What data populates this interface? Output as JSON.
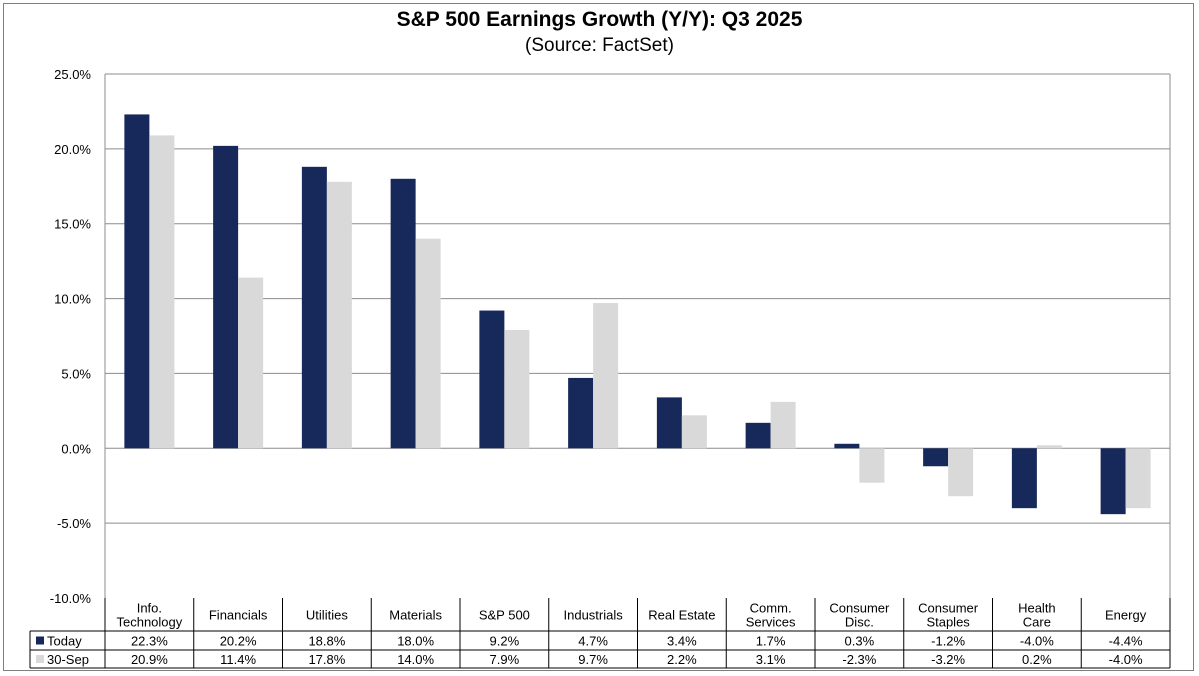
{
  "chart_data": {
    "type": "bar",
    "title": "S&P 500 Earnings Growth (Y/Y): Q3 2025",
    "subtitle": "(Source: FactSet)",
    "xlabel": "",
    "ylabel": "",
    "ylim": [
      -10,
      25
    ],
    "ytick_step": 5,
    "ytick_labels": [
      "25.0%",
      "20.0%",
      "15.0%",
      "10.0%",
      "5.0%",
      "0.0%",
      "-5.0%",
      "-10.0%"
    ],
    "grid": true,
    "legend": "in data table, left",
    "categories": [
      [
        "Info.",
        "Technology"
      ],
      [
        "Financials"
      ],
      [
        "Utilities"
      ],
      [
        "Materials"
      ],
      [
        "S&P 500"
      ],
      [
        "Industrials"
      ],
      [
        "Real Estate"
      ],
      [
        "Comm.",
        "Services"
      ],
      [
        "Consumer",
        "Disc."
      ],
      [
        "Consumer",
        "Staples"
      ],
      [
        "Health",
        "Care"
      ],
      [
        "Energy"
      ]
    ],
    "series": [
      {
        "name": "Today",
        "color": "#17285a",
        "values": [
          22.3,
          20.2,
          18.8,
          18.0,
          9.2,
          4.7,
          3.4,
          1.7,
          0.3,
          -1.2,
          -4.0,
          -4.4
        ],
        "labels": [
          "22.3%",
          "20.2%",
          "18.8%",
          "18.0%",
          "9.2%",
          "4.7%",
          "3.4%",
          "1.7%",
          "0.3%",
          "-1.2%",
          "-4.0%",
          "-4.4%"
        ]
      },
      {
        "name": "30-Sep",
        "color": "#d9d9d9",
        "values": [
          20.9,
          11.4,
          17.8,
          14.0,
          7.9,
          9.7,
          2.2,
          3.1,
          -2.3,
          -3.2,
          0.2,
          -4.0
        ],
        "labels": [
          "20.9%",
          "11.4%",
          "17.8%",
          "14.0%",
          "7.9%",
          "9.7%",
          "2.2%",
          "3.1%",
          "-2.3%",
          "-3.2%",
          "0.2%",
          "-4.0%"
        ]
      }
    ]
  }
}
